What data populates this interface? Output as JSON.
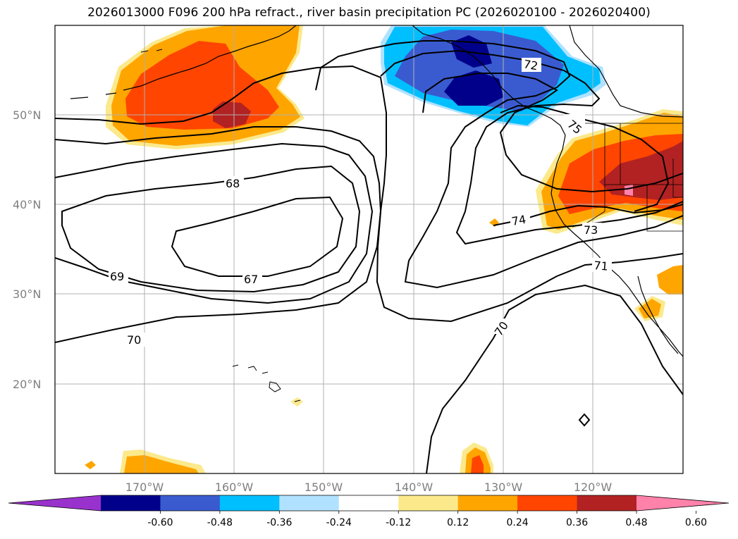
{
  "title": "2026013000 F096 200 hPa refract., river basin precipitation PC (2026020100 - 2026020400)",
  "map": {
    "lat_labels": [
      "50°N",
      "40°N",
      "30°N",
      "20°N"
    ],
    "lon_labels": [
      "170°W",
      "160°W",
      "150°W",
      "140°W",
      "130°W",
      "120°W"
    ],
    "contour_labels": [
      "68",
      "69",
      "67",
      "70",
      "70",
      "72",
      "75",
      "74",
      "73",
      "71"
    ],
    "contour_color": "#000000",
    "coastline_color": "#000000",
    "grid_color": "#b0b0b0"
  },
  "colorbar": {
    "colors": [
      "#9932cc",
      "#00008b",
      "#3a5bd0",
      "#00bfff",
      "#b0e2ff",
      "#ffffff",
      "#fbe98c",
      "#ffa500",
      "#ff4500",
      "#b22222",
      "#ff82ab"
    ],
    "tick_labels": [
      "-0.60",
      "-0.48",
      "-0.36",
      "-0.24",
      "-0.12",
      "0.12",
      "0.24",
      "0.36",
      "0.48",
      "0.60"
    ]
  }
}
